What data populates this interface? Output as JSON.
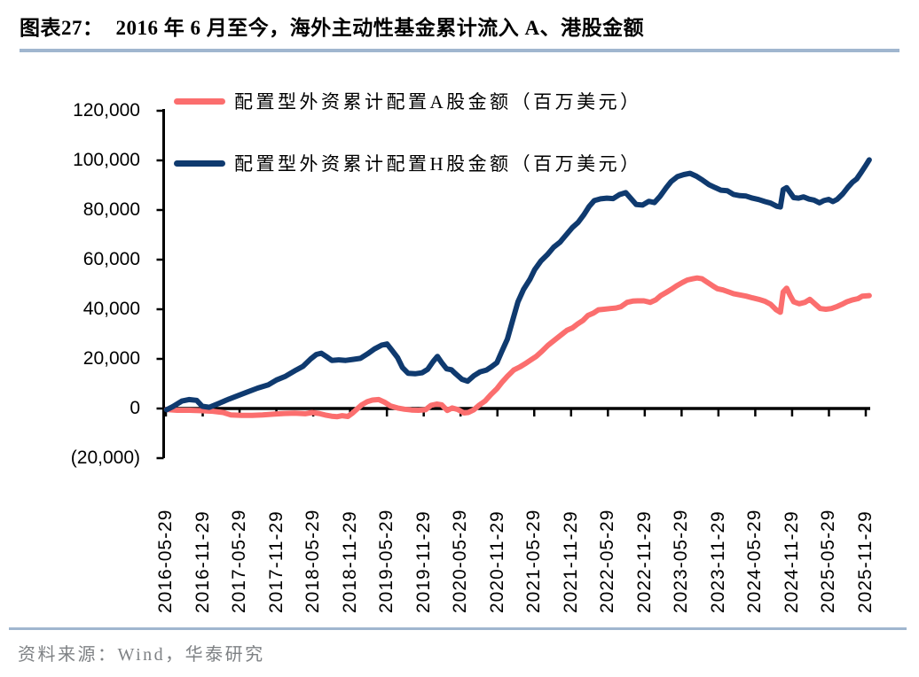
{
  "header": {
    "title_prefix": "图表27：",
    "title_text": "2016 年 6 月至今，海外主动性基金累计流入 A、港股金额"
  },
  "source": {
    "text": "资料来源：Wind，华泰研究"
  },
  "colors": {
    "a_share_red": "#FB6E6E",
    "h_share_navy": "#0F3A6F",
    "rule_blue": "#A0B6CF",
    "axis_black": "#000000",
    "source_gray": "#7E8184"
  },
  "chart_data": {
    "type": "line",
    "title": "2016 年 6 月至今，海外主动性基金累计流入 A、港股金额",
    "xlabel": "",
    "ylabel": "百万美元",
    "grid": false,
    "legend_position": "top-left",
    "ylim": [
      -20000,
      120000
    ],
    "y_tick_values": [
      120000,
      100000,
      80000,
      60000,
      40000,
      20000,
      0,
      -20000
    ],
    "y_tick_labels": [
      "120,000",
      "100,000",
      "80,000",
      "60,000",
      "40,000",
      "20,000",
      "0",
      "(20,000)"
    ],
    "x_tick_labels": [
      "2016-05-29",
      "2016-11-29",
      "2017-05-29",
      "2017-11-29",
      "2018-05-29",
      "2018-11-29",
      "2019-05-29",
      "2019-11-29",
      "2020-05-29",
      "2020-11-29",
      "2021-05-29",
      "2021-11-29",
      "2022-05-29",
      "2022-11-29",
      "2023-05-29",
      "2023-11-29",
      "2024-05-29",
      "2024-11-29",
      "2025-05-29",
      "2025-11-29"
    ],
    "series": [
      {
        "name": "配置型外资累计配置A股金额（百万美元）",
        "color": "#FB6E6E",
        "points": [
          [
            0.001,
            -400
          ],
          [
            0.016,
            -700
          ],
          [
            0.034,
            -700
          ],
          [
            0.052,
            -900
          ],
          [
            0.067,
            -1100
          ],
          [
            0.082,
            -1600
          ],
          [
            0.093,
            -2600
          ],
          [
            0.108,
            -2800
          ],
          [
            0.123,
            -2800
          ],
          [
            0.138,
            -2600
          ],
          [
            0.153,
            -2300
          ],
          [
            0.169,
            -2000
          ],
          [
            0.184,
            -1900
          ],
          [
            0.199,
            -2100
          ],
          [
            0.209,
            -1600
          ],
          [
            0.219,
            -2000
          ],
          [
            0.229,
            -2700
          ],
          [
            0.237,
            -3100
          ],
          [
            0.245,
            -3300
          ],
          [
            0.252,
            -2900
          ],
          [
            0.26,
            -3200
          ],
          [
            0.266,
            -2000
          ],
          [
            0.272,
            -500
          ],
          [
            0.28,
            1500
          ],
          [
            0.288,
            2800
          ],
          [
            0.295,
            3400
          ],
          [
            0.304,
            3600
          ],
          [
            0.312,
            2600
          ],
          [
            0.321,
            1000
          ],
          [
            0.331,
            200
          ],
          [
            0.341,
            -300
          ],
          [
            0.351,
            -600
          ],
          [
            0.361,
            -700
          ],
          [
            0.371,
            -500
          ],
          [
            0.379,
            1300
          ],
          [
            0.387,
            1800
          ],
          [
            0.394,
            1500
          ],
          [
            0.402,
            -800
          ],
          [
            0.409,
            200
          ],
          [
            0.417,
            -400
          ],
          [
            0.426,
            -1800
          ],
          [
            0.432,
            -1600
          ],
          [
            0.44,
            -500
          ],
          [
            0.447,
            1200
          ],
          [
            0.456,
            3000
          ],
          [
            0.464,
            5500
          ],
          [
            0.473,
            8000
          ],
          [
            0.48,
            10500
          ],
          [
            0.488,
            13000
          ],
          [
            0.497,
            15500
          ],
          [
            0.506,
            16800
          ],
          [
            0.513,
            18000
          ],
          [
            0.521,
            19500
          ],
          [
            0.529,
            21000
          ],
          [
            0.537,
            23000
          ],
          [
            0.546,
            25500
          ],
          [
            0.555,
            27500
          ],
          [
            0.564,
            29500
          ],
          [
            0.573,
            31500
          ],
          [
            0.581,
            32500
          ],
          [
            0.588,
            34000
          ],
          [
            0.596,
            35500
          ],
          [
            0.603,
            37500
          ],
          [
            0.611,
            38500
          ],
          [
            0.618,
            39800
          ],
          [
            0.626,
            40000
          ],
          [
            0.635,
            40300
          ],
          [
            0.643,
            40500
          ],
          [
            0.65,
            41000
          ],
          [
            0.659,
            42800
          ],
          [
            0.667,
            43300
          ],
          [
            0.674,
            43400
          ],
          [
            0.683,
            43400
          ],
          [
            0.692,
            42800
          ],
          [
            0.7,
            43800
          ],
          [
            0.707,
            45500
          ],
          [
            0.715,
            46800
          ],
          [
            0.722,
            48000
          ],
          [
            0.73,
            49500
          ],
          [
            0.738,
            50800
          ],
          [
            0.745,
            51800
          ],
          [
            0.753,
            52300
          ],
          [
            0.759,
            52600
          ],
          [
            0.766,
            52300
          ],
          [
            0.773,
            51000
          ],
          [
            0.781,
            49500
          ],
          [
            0.788,
            48300
          ],
          [
            0.796,
            47800
          ],
          [
            0.804,
            47000
          ],
          [
            0.811,
            46300
          ],
          [
            0.82,
            45800
          ],
          [
            0.829,
            45300
          ],
          [
            0.838,
            44600
          ],
          [
            0.847,
            44000
          ],
          [
            0.856,
            43200
          ],
          [
            0.864,
            42000
          ],
          [
            0.872,
            39800
          ],
          [
            0.878,
            38800
          ],
          [
            0.882,
            47000
          ],
          [
            0.887,
            48500
          ],
          [
            0.892,
            45500
          ],
          [
            0.897,
            43000
          ],
          [
            0.905,
            42200
          ],
          [
            0.913,
            42800
          ],
          [
            0.92,
            44000
          ],
          [
            0.928,
            42000
          ],
          [
            0.935,
            40300
          ],
          [
            0.943,
            40000
          ],
          [
            0.951,
            40300
          ],
          [
            0.958,
            41000
          ],
          [
            0.966,
            42000
          ],
          [
            0.973,
            43000
          ],
          [
            0.981,
            43800
          ],
          [
            0.989,
            44300
          ],
          [
            0.995,
            45300
          ],
          [
            1.005,
            45500
          ]
        ]
      },
      {
        "name": "配置型外资累计配置H股金额（百万美元）",
        "color": "#0F3A6F",
        "points": [
          [
            0.001,
            -500
          ],
          [
            0.01,
            800
          ],
          [
            0.023,
            3000
          ],
          [
            0.033,
            3600
          ],
          [
            0.044,
            3300
          ],
          [
            0.052,
            900
          ],
          [
            0.062,
            500
          ],
          [
            0.077,
            2200
          ],
          [
            0.09,
            3800
          ],
          [
            0.103,
            5200
          ],
          [
            0.115,
            6500
          ],
          [
            0.131,
            8200
          ],
          [
            0.146,
            9500
          ],
          [
            0.158,
            11500
          ],
          [
            0.171,
            13000
          ],
          [
            0.186,
            15500
          ],
          [
            0.196,
            17000
          ],
          [
            0.207,
            20000
          ],
          [
            0.215,
            21800
          ],
          [
            0.222,
            22300
          ],
          [
            0.229,
            21000
          ],
          [
            0.237,
            19400
          ],
          [
            0.247,
            19600
          ],
          [
            0.257,
            19400
          ],
          [
            0.267,
            19800
          ],
          [
            0.278,
            20200
          ],
          [
            0.288,
            22000
          ],
          [
            0.298,
            24000
          ],
          [
            0.308,
            25500
          ],
          [
            0.316,
            26000
          ],
          [
            0.323,
            23500
          ],
          [
            0.331,
            20500
          ],
          [
            0.338,
            16500
          ],
          [
            0.346,
            14200
          ],
          [
            0.356,
            14000
          ],
          [
            0.366,
            14400
          ],
          [
            0.374,
            15800
          ],
          [
            0.382,
            19000
          ],
          [
            0.388,
            21000
          ],
          [
            0.394,
            18500
          ],
          [
            0.401,
            16000
          ],
          [
            0.408,
            15600
          ],
          [
            0.414,
            14000
          ],
          [
            0.423,
            11800
          ],
          [
            0.431,
            11000
          ],
          [
            0.44,
            13200
          ],
          [
            0.449,
            14800
          ],
          [
            0.458,
            15500
          ],
          [
            0.465,
            16800
          ],
          [
            0.473,
            18500
          ],
          [
            0.48,
            23000
          ],
          [
            0.488,
            28000
          ],
          [
            0.496,
            36000
          ],
          [
            0.503,
            43000
          ],
          [
            0.511,
            48000
          ],
          [
            0.52,
            52000
          ],
          [
            0.527,
            56000
          ],
          [
            0.536,
            59500
          ],
          [
            0.545,
            62000
          ],
          [
            0.554,
            65000
          ],
          [
            0.563,
            67000
          ],
          [
            0.572,
            70000
          ],
          [
            0.581,
            73000
          ],
          [
            0.589,
            75000
          ],
          [
            0.597,
            78000
          ],
          [
            0.605,
            81500
          ],
          [
            0.612,
            83800
          ],
          [
            0.621,
            84500
          ],
          [
            0.63,
            84800
          ],
          [
            0.639,
            84600
          ],
          [
            0.648,
            86200
          ],
          [
            0.657,
            87000
          ],
          [
            0.664,
            84800
          ],
          [
            0.672,
            82200
          ],
          [
            0.681,
            82000
          ],
          [
            0.69,
            83500
          ],
          [
            0.698,
            83000
          ],
          [
            0.706,
            85500
          ],
          [
            0.715,
            89000
          ],
          [
            0.722,
            91500
          ],
          [
            0.731,
            93500
          ],
          [
            0.74,
            94300
          ],
          [
            0.749,
            94800
          ],
          [
            0.758,
            93600
          ],
          [
            0.767,
            92000
          ],
          [
            0.776,
            90200
          ],
          [
            0.785,
            89000
          ],
          [
            0.793,
            88000
          ],
          [
            0.802,
            87800
          ],
          [
            0.811,
            86300
          ],
          [
            0.82,
            85800
          ],
          [
            0.829,
            85600
          ],
          [
            0.838,
            84800
          ],
          [
            0.847,
            84200
          ],
          [
            0.856,
            83400
          ],
          [
            0.864,
            82800
          ],
          [
            0.873,
            81500
          ],
          [
            0.878,
            81200
          ],
          [
            0.882,
            88200
          ],
          [
            0.887,
            89000
          ],
          [
            0.892,
            87000
          ],
          [
            0.897,
            85000
          ],
          [
            0.904,
            84800
          ],
          [
            0.911,
            85300
          ],
          [
            0.919,
            84400
          ],
          [
            0.926,
            84000
          ],
          [
            0.934,
            82900
          ],
          [
            0.94,
            83800
          ],
          [
            0.947,
            84300
          ],
          [
            0.953,
            83400
          ],
          [
            0.959,
            84300
          ],
          [
            0.967,
            86500
          ],
          [
            0.974,
            89000
          ],
          [
            0.981,
            91200
          ],
          [
            0.987,
            92500
          ],
          [
            0.993,
            95000
          ],
          [
            1.0,
            98000
          ],
          [
            1.005,
            100200
          ]
        ]
      }
    ]
  }
}
